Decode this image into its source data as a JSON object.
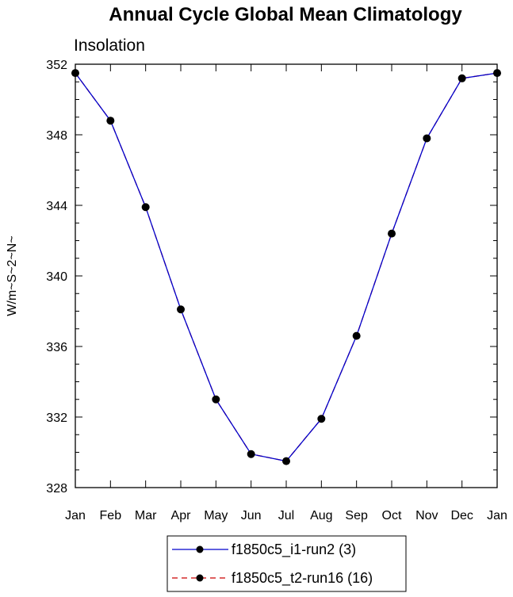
{
  "chart_data": {
    "type": "line",
    "title": "Annual Cycle Global Mean Climatology",
    "subtitle": "Insolation",
    "ylabel": "W/m~S~2~N~",
    "xlabel": "",
    "categories": [
      "Jan",
      "Feb",
      "Mar",
      "Apr",
      "May",
      "Jun",
      "Jul",
      "Aug",
      "Sep",
      "Oct",
      "Nov",
      "Dec",
      "Jan"
    ],
    "ylim": [
      328,
      352
    ],
    "yticks": [
      "328",
      "332",
      "336",
      "340",
      "344",
      "348",
      "352"
    ],
    "grid": false,
    "legend_position": "bottom-center",
    "series": [
      {
        "name": "f1850c5_i1-run2 (3)",
        "color": "#0000cc",
        "line_style": "solid",
        "values": [
          351.5,
          348.8,
          343.9,
          338.1,
          333.0,
          329.9,
          329.5,
          331.9,
          336.6,
          342.4,
          347.8,
          351.2,
          351.5
        ]
      },
      {
        "name": "f1850c5_t2-run16 (16)",
        "color": "#cc0000",
        "line_style": "dashed",
        "values": [
          351.5,
          348.8,
          343.9,
          338.1,
          333.0,
          329.9,
          329.5,
          331.9,
          336.6,
          342.4,
          347.8,
          351.2,
          351.5
        ]
      }
    ]
  }
}
